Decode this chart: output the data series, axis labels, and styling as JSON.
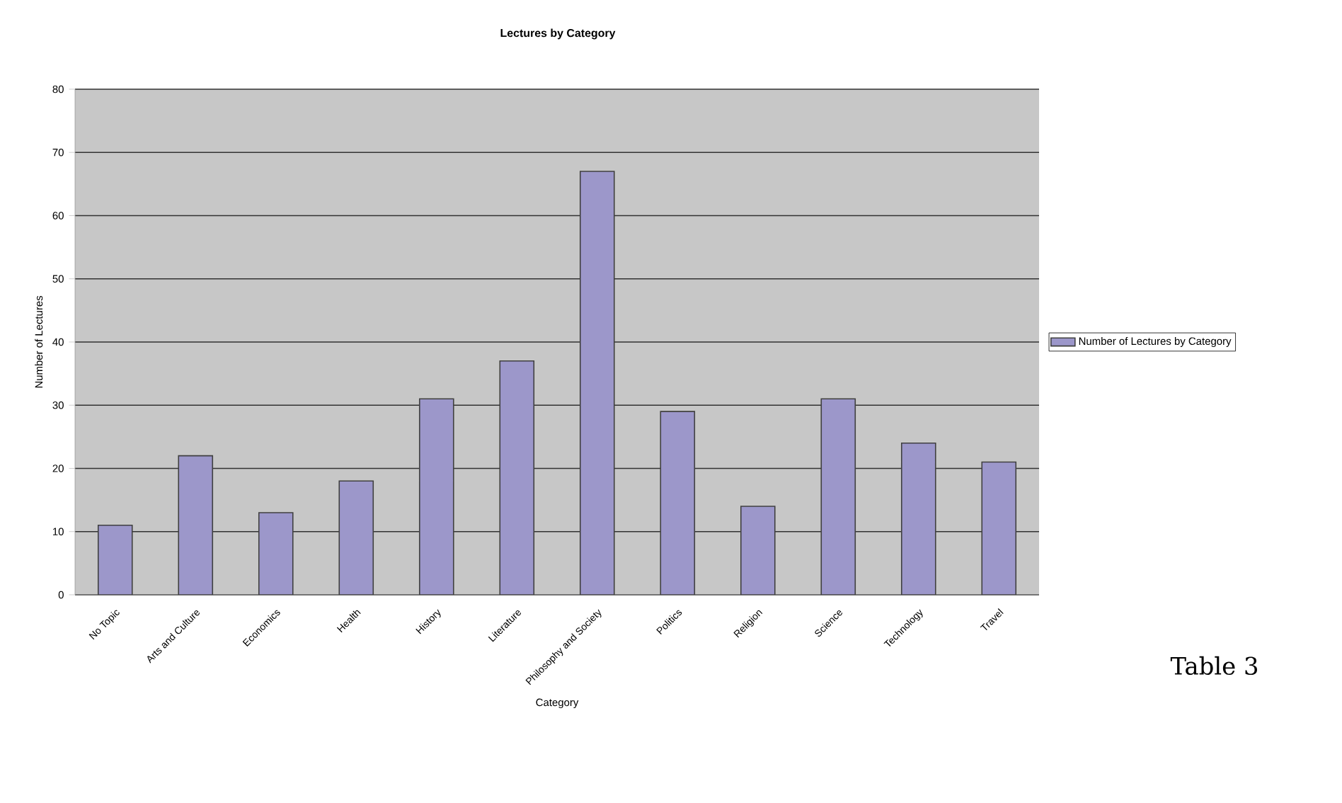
{
  "chart_data": {
    "type": "bar",
    "title": "Lectures by Category",
    "xlabel": "Category",
    "ylabel": "Number of Lectures",
    "categories": [
      "No Topic",
      "Arts and Culture",
      "Economics",
      "Health",
      "History",
      "Literature",
      "Philosophy and Society",
      "Politics",
      "Religion",
      "Science",
      "Technology",
      "Travel"
    ],
    "series": [
      {
        "name": "Number of Lectures by Category",
        "color": "#9c97ca",
        "values": [
          11,
          22,
          13,
          18,
          31,
          37,
          67,
          29,
          14,
          31,
          24,
          21
        ]
      }
    ],
    "ylim": [
      0,
      80
    ],
    "yticks": [
      0,
      10,
      20,
      30,
      40,
      50,
      60,
      70,
      80
    ],
    "grid": "y",
    "legend": "right",
    "annotations": [
      "Table 3"
    ]
  }
}
